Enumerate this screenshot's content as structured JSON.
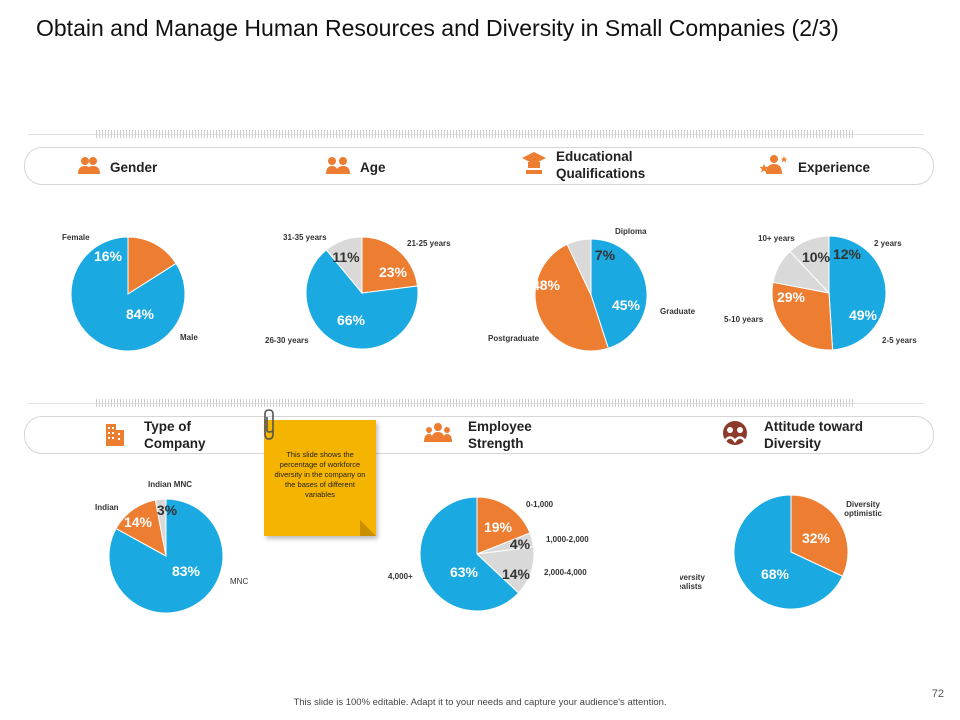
{
  "page": {
    "title": "Obtain and Manage Human Resources and Diversity in Small Companies (2/3)",
    "footer": "This slide is 100% editable. Adapt it to your needs and capture your audience's attention.",
    "page_number": "72"
  },
  "colors": {
    "orange": "#ED7D31",
    "blue": "#1AA9E1",
    "gray": "#D9D9D9"
  },
  "row1": {
    "headers": [
      {
        "label": "Gender",
        "icon": "people-icon"
      },
      {
        "label": "Age",
        "icon": "people-group-icon"
      },
      {
        "label": "Educational Qualifications",
        "icon": "graduation-cap-icon"
      },
      {
        "label": "Experience",
        "icon": "star-people-icon"
      }
    ]
  },
  "row2": {
    "headers": [
      {
        "label": "Type of Company",
        "icon": "building-icon"
      },
      {
        "label": "Employee Strength",
        "icon": "team-icon"
      },
      {
        "label": "Attitude toward Diversity",
        "icon": "diverse-people-icon"
      }
    ]
  },
  "note": {
    "text": "This slide shows the percentage of workforce diversity in the company on the bases of different variables"
  },
  "chart_data": [
    {
      "type": "pie",
      "title": "Gender",
      "slices": [
        {
          "label": "Female",
          "value": 16,
          "pct": "16%"
        },
        {
          "label": "Male",
          "value": 84,
          "pct": "84%"
        }
      ]
    },
    {
      "type": "pie",
      "title": "Age",
      "slices": [
        {
          "label": "21-25 years",
          "value": 23,
          "pct": "23%"
        },
        {
          "label": "26-30 years",
          "value": 66,
          "pct": "66%"
        },
        {
          "label": "31-35 years",
          "value": 11,
          "pct": "11%"
        }
      ]
    },
    {
      "type": "pie",
      "title": "Educational Qualifications",
      "slices": [
        {
          "label": "Graduate",
          "value": 45,
          "pct": "45%"
        },
        {
          "label": "Postgraduate",
          "value": 48,
          "pct": "48%"
        },
        {
          "label": "Diploma",
          "value": 7,
          "pct": "7%"
        }
      ]
    },
    {
      "type": "pie",
      "title": "Experience",
      "slices": [
        {
          "label": "2-5 years",
          "value": 49,
          "pct": "49%"
        },
        {
          "label": "5-10 years",
          "value": 29,
          "pct": "29%"
        },
        {
          "label": "10+ years",
          "value": 10,
          "pct": "10%"
        },
        {
          "label": "2 years",
          "value": 12,
          "pct": "12%"
        }
      ]
    },
    {
      "type": "pie",
      "title": "Type of Company",
      "slices": [
        {
          "label": "MNC",
          "value": 83,
          "pct": "83%"
        },
        {
          "label": "Indian",
          "value": 14,
          "pct": "14%"
        },
        {
          "label": "Indian MNC",
          "value": 3,
          "pct": "3%"
        }
      ]
    },
    {
      "type": "pie",
      "title": "Employee Strength",
      "slices": [
        {
          "label": "0-1,000",
          "value": 19,
          "pct": "19%"
        },
        {
          "label": "1,000-2,000",
          "value": 4,
          "pct": "4%"
        },
        {
          "label": "2,000-4,000",
          "value": 14,
          "pct": "14%"
        },
        {
          "label": "4,000+",
          "value": 63,
          "pct": "63%"
        }
      ]
    },
    {
      "type": "pie",
      "title": "Attitude toward Diversity",
      "slices": [
        {
          "label": "Diversity optimistic",
          "value": 32,
          "pct": "32%"
        },
        {
          "label": "Diversity realists",
          "value": 68,
          "pct": "68%"
        }
      ]
    }
  ]
}
